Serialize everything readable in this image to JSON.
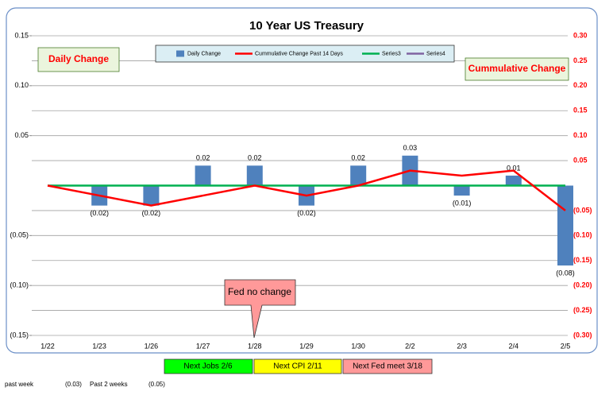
{
  "chart_data": {
    "type": "bar",
    "title": "10 Year US Treasury",
    "categories": [
      "1/22",
      "1/23",
      "1/26",
      "1/27",
      "1/28",
      "1/29",
      "1/30",
      "2/2",
      "2/3",
      "2/4",
      "2/5"
    ],
    "series": [
      {
        "name": "Daily Change",
        "type": "bar",
        "color": "#4f81bd",
        "values": [
          null,
          -0.02,
          -0.02,
          0.02,
          0.02,
          -0.02,
          0.02,
          0.03,
          -0.01,
          0.01,
          -0.08
        ],
        "value_labels": [
          null,
          "(0.02)",
          "(0.02)",
          "0.02",
          "0.02",
          "(0.02)",
          "0.02",
          "0.03",
          "(0.01)",
          "0.01",
          "(0.08)"
        ]
      },
      {
        "name": "Cummulative Change Past 14 Days",
        "type": "line",
        "axis": "y2",
        "color": "#ff0000",
        "values": [
          0,
          -0.02,
          -0.04,
          -0.02,
          0,
          -0.02,
          0,
          0.03,
          0.02,
          0.03,
          -0.05
        ]
      },
      {
        "name": "Series3",
        "type": "line",
        "axis": "y2",
        "color": "#00b050",
        "values": [
          0,
          0,
          0,
          0,
          0,
          0,
          0,
          0,
          0,
          0,
          0
        ]
      },
      {
        "name": "Series4",
        "type": "line",
        "axis": "y2",
        "color": "#8064a2",
        "values": [
          null,
          null,
          null,
          null,
          null,
          null,
          null,
          null,
          null,
          null,
          null
        ]
      }
    ],
    "ylim": [
      -0.15,
      0.15
    ],
    "yticks": [
      0.15,
      {
        "value": 0.1,
        "label": "0.10"
      },
      0.05,
      {
        "value": -0.05,
        "label": "(0.05)"
      },
      {
        "value": -0.1,
        "label": "(0.10)"
      },
      {
        "value": -0.15,
        "label": "(0.15)"
      }
    ],
    "y2lim": [
      -0.3,
      0.3
    ],
    "y2ticks": [
      {
        "value": 0.3,
        "label": "0.30"
      },
      0.25,
      {
        "value": 0.2,
        "label": "0.20"
      },
      0.15,
      {
        "value": 0.1,
        "label": "0.10"
      },
      0.05,
      {
        "value": -0.05,
        "label": "(0.05)"
      },
      {
        "value": -0.1,
        "label": "(0.10)"
      },
      {
        "value": -0.15,
        "label": "(0.15)"
      },
      {
        "value": -0.2,
        "label": "(0.20)"
      },
      {
        "value": -0.25,
        "label": "(0.25)"
      },
      {
        "value": -0.3,
        "label": "(0.30)"
      }
    ],
    "grid": true,
    "legend": "top",
    "annotations": [
      "Daily Change",
      "Cummulative Change",
      "Fed no change",
      "Next Jobs 2/6",
      "Next CPI 2/11",
      "Next Fed meet 3/18"
    ],
    "footer": [
      "past week",
      "(0.03)",
      "Past 2 weeks",
      "(0.05)"
    ]
  }
}
